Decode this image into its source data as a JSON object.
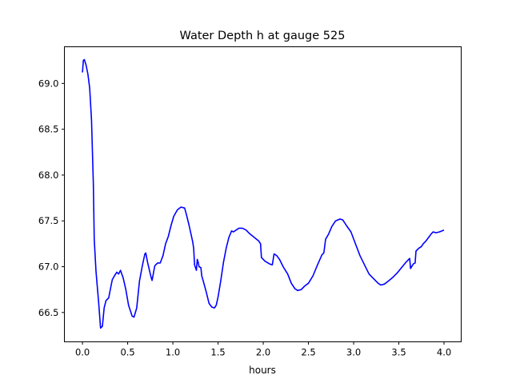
{
  "chart_data": {
    "type": "line",
    "title": "Water Depth h at gauge 525",
    "xlabel": "hours",
    "ylabel": "",
    "xlim": [
      -0.2,
      4.19
    ],
    "ylim": [
      66.18,
      69.4
    ],
    "xticks": [
      0.0,
      0.5,
      1.0,
      1.5,
      2.0,
      2.5,
      3.0,
      3.5,
      4.0
    ],
    "xtick_labels": [
      "0.0",
      "0.5",
      "1.0",
      "1.5",
      "2.0",
      "2.5",
      "3.0",
      "3.5",
      "4.0"
    ],
    "yticks": [
      66.5,
      67.0,
      67.5,
      68.0,
      68.5,
      69.0
    ],
    "ytick_labels": [
      "66.5",
      "67.0",
      "67.5",
      "68.0",
      "68.5",
      "69.0"
    ],
    "grid": false,
    "series": [
      {
        "name": "h",
        "color": "#0000ff",
        "x": [
          0.0,
          0.01,
          0.02,
          0.04,
          0.06,
          0.08,
          0.1,
          0.12,
          0.13,
          0.15,
          0.18,
          0.2,
          0.22,
          0.24,
          0.26,
          0.29,
          0.31,
          0.33,
          0.36,
          0.38,
          0.4,
          0.42,
          0.45,
          0.48,
          0.51,
          0.55,
          0.57,
          0.6,
          0.63,
          0.66,
          0.69,
          0.7,
          0.72,
          0.76,
          0.77,
          0.8,
          0.83,
          0.86,
          0.89,
          0.92,
          0.95,
          0.98,
          1.01,
          1.05,
          1.09,
          1.13,
          1.15,
          1.18,
          1.22,
          1.23,
          1.24,
          1.26,
          1.27,
          1.28,
          1.29,
          1.31,
          1.32,
          1.34,
          1.37,
          1.4,
          1.43,
          1.46,
          1.48,
          1.5,
          1.53,
          1.56,
          1.59,
          1.62,
          1.65,
          1.67,
          1.7,
          1.73,
          1.77,
          1.81,
          1.85,
          1.9,
          1.95,
          1.97,
          1.98,
          2.02,
          2.07,
          2.1,
          2.12,
          2.15,
          2.18,
          2.22,
          2.27,
          2.31,
          2.35,
          2.38,
          2.42,
          2.46,
          2.5,
          2.55,
          2.6,
          2.65,
          2.67,
          2.69,
          2.72,
          2.76,
          2.8,
          2.85,
          2.88,
          2.92,
          2.97,
          3.02,
          3.07,
          3.12,
          3.17,
          3.22,
          3.27,
          3.3,
          3.34,
          3.38,
          3.43,
          3.48,
          3.53,
          3.58,
          3.62,
          3.63,
          3.66,
          3.68,
          3.69,
          3.72,
          3.75,
          3.77,
          3.8,
          3.83,
          3.86,
          3.88,
          3.91,
          3.95,
          4.0
        ],
        "y": [
          69.12,
          69.25,
          69.26,
          69.2,
          69.1,
          68.95,
          68.6,
          67.9,
          67.3,
          66.95,
          66.6,
          66.33,
          66.35,
          66.55,
          66.63,
          66.66,
          66.76,
          66.86,
          66.91,
          66.94,
          66.92,
          66.96,
          66.88,
          66.75,
          66.58,
          66.46,
          66.45,
          66.55,
          66.84,
          67.0,
          67.14,
          67.15,
          67.05,
          66.88,
          66.85,
          67.01,
          67.04,
          67.04,
          67.12,
          67.25,
          67.33,
          67.45,
          67.55,
          67.62,
          67.65,
          67.64,
          67.57,
          67.45,
          67.27,
          67.2,
          67.02,
          66.96,
          67.08,
          67.05,
          67.0,
          66.99,
          66.9,
          66.83,
          66.72,
          66.6,
          66.56,
          66.55,
          66.58,
          66.67,
          66.85,
          67.05,
          67.2,
          67.32,
          67.39,
          67.38,
          67.4,
          67.42,
          67.42,
          67.4,
          67.36,
          67.32,
          67.28,
          67.25,
          67.1,
          67.06,
          67.03,
          67.02,
          67.14,
          67.12,
          67.08,
          67.0,
          66.92,
          66.82,
          66.76,
          66.74,
          66.75,
          66.79,
          66.82,
          66.9,
          67.02,
          67.13,
          67.15,
          67.3,
          67.35,
          67.44,
          67.5,
          67.52,
          67.51,
          67.45,
          67.38,
          67.25,
          67.12,
          67.02,
          66.92,
          66.87,
          66.82,
          66.8,
          66.81,
          66.84,
          66.88,
          66.93,
          66.99,
          67.05,
          67.09,
          66.98,
          67.03,
          67.04,
          67.17,
          67.2,
          67.22,
          67.25,
          67.28,
          67.32,
          67.36,
          67.38,
          67.37,
          67.38,
          67.4
        ]
      }
    ]
  }
}
